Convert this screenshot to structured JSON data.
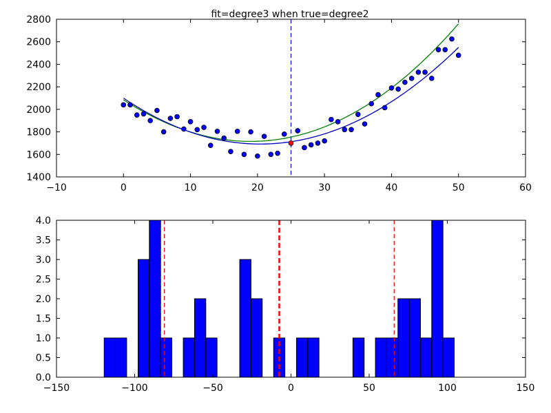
{
  "chart_data": [
    {
      "type": "scatter",
      "title": "fit=degree3 when true=degree2",
      "xlabel": "",
      "ylabel": "",
      "xlim": [
        -10,
        60
      ],
      "ylim": [
        1400,
        2800
      ],
      "xticks": [
        -10,
        0,
        10,
        20,
        30,
        40,
        50,
        60
      ],
      "yticks": [
        1400,
        1600,
        1800,
        2000,
        2200,
        2400,
        2600,
        2800
      ],
      "grid": false,
      "points": {
        "color": "#0000ff",
        "x": [
          0,
          1,
          2,
          3,
          4,
          5,
          6,
          7,
          8,
          9,
          10,
          11,
          12,
          13,
          14,
          15,
          16,
          17,
          18,
          19,
          20,
          21,
          22,
          23,
          24,
          26,
          27,
          28,
          29,
          30,
          31,
          32,
          33,
          34,
          35,
          36,
          37,
          38,
          39,
          40,
          41,
          42,
          43,
          44,
          45,
          46,
          47,
          48,
          49,
          50
        ],
        "y": [
          2040,
          2040,
          1950,
          1960,
          1900,
          1990,
          1800,
          1920,
          1935,
          1825,
          1890,
          1820,
          1840,
          1680,
          1805,
          1745,
          1625,
          1805,
          1600,
          1800,
          1585,
          1760,
          1600,
          1610,
          1780,
          1810,
          1660,
          1685,
          1700,
          1720,
          1910,
          1890,
          1820,
          1820,
          1955,
          1870,
          2050,
          2130,
          2015,
          2190,
          2180,
          2240,
          2275,
          2330,
          2330,
          2275,
          2530,
          2530,
          2625,
          2480
        ]
      },
      "highlight_point": {
        "x": 25,
        "y": 1700,
        "color": "#ff0000"
      },
      "vline": {
        "x": 25,
        "color": "#0000ff",
        "style": "dashed"
      },
      "series": [
        {
          "kind": "fit",
          "color": "#008000",
          "coeffs": [
            2085,
            -38.5,
            0.98,
            0.0012
          ]
        },
        {
          "kind": "fit",
          "color": "#0000bf",
          "coeffs": [
            2100,
            -40.0,
            0.98,
            0
          ]
        }
      ]
    },
    {
      "type": "bar",
      "title": "",
      "xlabel": "",
      "ylabel": "",
      "xlim": [
        -150,
        150
      ],
      "ylim": [
        0.0,
        4.0
      ],
      "xticks": [
        -150,
        -100,
        -50,
        0,
        50,
        100,
        150
      ],
      "yticks": [
        "0.0",
        "0.5",
        "1.0",
        "1.5",
        "2.0",
        "2.5",
        "3.0",
        "3.5",
        "4.0"
      ],
      "grid": false,
      "bar_color": "#0000ff",
      "bins": [
        {
          "left": -119.5,
          "right": -112.3,
          "count": 1
        },
        {
          "left": -112.3,
          "right": -105.1,
          "count": 1
        },
        {
          "left": -97.8,
          "right": -90.6,
          "count": 3
        },
        {
          "left": -90.6,
          "right": -83.4,
          "count": 4
        },
        {
          "left": -83.4,
          "right": -76.2,
          "count": 1
        },
        {
          "left": -68.9,
          "right": -61.7,
          "count": 1
        },
        {
          "left": -61.7,
          "right": -54.5,
          "count": 2
        },
        {
          "left": -54.5,
          "right": -47.3,
          "count": 1
        },
        {
          "left": -32.8,
          "right": -25.6,
          "count": 3
        },
        {
          "left": -25.6,
          "right": -18.4,
          "count": 2
        },
        {
          "left": -11.1,
          "right": -3.9,
          "count": 1
        },
        {
          "left": 3.5,
          "right": 10.7,
          "count": 1
        },
        {
          "left": 10.7,
          "right": 17.9,
          "count": 1
        },
        {
          "left": 39.6,
          "right": 46.8,
          "count": 1
        },
        {
          "left": 54.0,
          "right": 61.2,
          "count": 1
        },
        {
          "left": 61.2,
          "right": 68.4,
          "count": 1
        },
        {
          "left": 68.4,
          "right": 75.6,
          "count": 2
        },
        {
          "left": 75.6,
          "right": 82.8,
          "count": 2
        },
        {
          "left": 82.8,
          "right": 90.0,
          "count": 1
        },
        {
          "left": 90.0,
          "right": 97.2,
          "count": 4
        },
        {
          "left": 97.2,
          "right": 104.4,
          "count": 1
        }
      ],
      "vlines": [
        {
          "x": -81,
          "color": "#ff0000",
          "style": "dashed",
          "weight": "normal"
        },
        {
          "x": -7.5,
          "color": "#ff0000",
          "style": "dashed",
          "weight": "bold"
        },
        {
          "x": 66,
          "color": "#ff0000",
          "style": "dashed",
          "weight": "normal"
        }
      ]
    }
  ]
}
